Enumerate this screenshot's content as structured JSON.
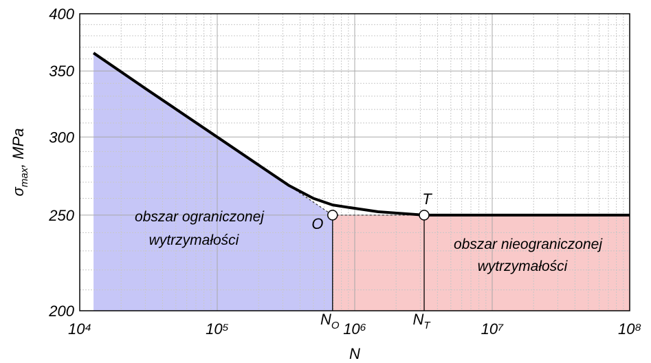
{
  "chart_data": {
    "type": "line",
    "xlabel": "N",
    "ylabel": {
      "main": "σ",
      "sub": "max",
      "rest": ", MPa"
    },
    "xlog": true,
    "ylog": true,
    "grid": true,
    "xlim": [
      10000,
      100000000
    ],
    "ylim": [
      200,
      400
    ],
    "xticks": [
      {
        "value": 10000,
        "label": "10⁴"
      },
      {
        "value": 100000,
        "label": "10⁵"
      },
      {
        "value": 1000000,
        "label": "10⁶"
      },
      {
        "value": 10000000,
        "label": "10⁷"
      },
      {
        "value": 100000000,
        "label": "10⁸"
      }
    ],
    "yticks": [
      200,
      250,
      300,
      350,
      400
    ],
    "series": [
      {
        "color": "#000000",
        "x": [
          12600,
          30000,
          100000,
          200000,
          331000,
          500000,
          690000,
          1000000,
          1480000,
          2200000,
          3200000,
          100000000
        ],
        "values": [
          365,
          336,
          300,
          281,
          268,
          260,
          256,
          254,
          252,
          251,
          250,
          250
        ]
      }
    ],
    "points": [
      {
        "label": "O",
        "x": 690000,
        "y": 250,
        "n_label": "N",
        "n_sub": "O"
      },
      {
        "label": "T",
        "x": 3200000,
        "y": 250,
        "n_label": "N",
        "n_sub": "T"
      }
    ],
    "region_labels": {
      "left": [
        "obszar ograniczonej",
        "wytrzymałości"
      ],
      "right": [
        "obszar nieograniczonej",
        "wytrzymałości"
      ]
    },
    "region_colors": {
      "left": "#c6c6f7",
      "right": "#f9c9c9"
    }
  }
}
